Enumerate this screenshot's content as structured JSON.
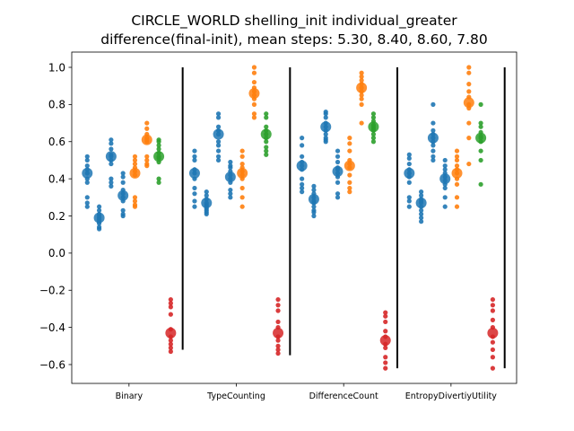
{
  "chart_data": {
    "type": "scatter",
    "title_line1": "CIRCLE_WORLD shelling_init individual_greater",
    "title_line2": "difference(final-init), mean steps: 5.30, 8.40, 8.60, 7.80",
    "xlabel": "",
    "ylabel": "",
    "ylim": [
      -0.7,
      1.07
    ],
    "yticks": [
      "−0.6",
      "−0.4",
      "−0.2",
      "0.0",
      "0.2",
      "0.4",
      "0.6",
      "0.8",
      "1.0"
    ],
    "ytick_values": [
      -0.6,
      -0.4,
      -0.2,
      0.0,
      0.2,
      0.4,
      0.6,
      0.8,
      1.0
    ],
    "grid": false,
    "colors": {
      "blue": "#1f77b4",
      "orange": "#ff7f0e",
      "green": "#2ca02c",
      "red": "#d62728",
      "separator": "#000000"
    },
    "groups": [
      {
        "label": "Binary",
        "strips": [
          {
            "x": 0.5,
            "color": "blue",
            "mean": 0.43,
            "points": [
              0.52,
              0.5,
              0.47,
              0.45,
              0.43,
              0.4,
              0.38,
              0.3,
              0.27,
              0.25
            ]
          },
          {
            "x": 1.5,
            "color": "blue",
            "mean": 0.19,
            "points": [
              0.25,
              0.23,
              0.21,
              0.2,
              0.19,
              0.18,
              0.17,
              0.16,
              0.14,
              0.13
            ]
          },
          {
            "x": 2.5,
            "color": "blue",
            "mean": 0.52,
            "points": [
              0.61,
              0.59,
              0.56,
              0.53,
              0.52,
              0.5,
              0.48,
              0.4,
              0.38,
              0.36
            ]
          },
          {
            "x": 3.5,
            "color": "blue",
            "mean": 0.31,
            "points": [
              0.43,
              0.41,
              0.38,
              0.34,
              0.32,
              0.3,
              0.28,
              0.23,
              0.21,
              0.2
            ]
          },
          {
            "x": 4.5,
            "color": "orange",
            "mean": 0.43,
            "points": [
              0.52,
              0.5,
              0.48,
              0.46,
              0.44,
              0.42,
              0.3,
              0.28,
              0.26,
              0.25
            ]
          },
          {
            "x": 5.5,
            "color": "orange",
            "mean": 0.61,
            "points": [
              0.7,
              0.67,
              0.64,
              0.62,
              0.61,
              0.6,
              0.52,
              0.5,
              0.48,
              0.47
            ]
          },
          {
            "x": 6.5,
            "color": "green",
            "mean": 0.52,
            "points": [
              0.61,
              0.6,
              0.58,
              0.56,
              0.54,
              0.52,
              0.51,
              0.49,
              0.4,
              0.38
            ]
          },
          {
            "x": 7.5,
            "color": "red",
            "mean": -0.43,
            "points": [
              -0.25,
              -0.27,
              -0.29,
              -0.33,
              -0.41,
              -0.45,
              -0.47,
              -0.49,
              -0.51,
              -0.53
            ]
          }
        ]
      },
      {
        "label": "TypeCounting",
        "strips": [
          {
            "x": 9.5,
            "color": "blue",
            "mean": 0.43,
            "points": [
              0.55,
              0.52,
              0.5,
              0.45,
              0.43,
              0.4,
              0.35,
              0.32,
              0.28,
              0.25
            ]
          },
          {
            "x": 10.5,
            "color": "blue",
            "mean": 0.27,
            "points": [
              0.33,
              0.31,
              0.29,
              0.27,
              0.26,
              0.25,
              0.24,
              0.23,
              0.22,
              0.21
            ]
          },
          {
            "x": 11.5,
            "color": "blue",
            "mean": 0.64,
            "points": [
              0.75,
              0.73,
              0.68,
              0.66,
              0.64,
              0.6,
              0.58,
              0.55,
              0.52,
              0.5
            ]
          },
          {
            "x": 12.5,
            "color": "blue",
            "mean": 0.41,
            "points": [
              0.49,
              0.47,
              0.46,
              0.44,
              0.42,
              0.4,
              0.38,
              0.34,
              0.32,
              0.3
            ]
          },
          {
            "x": 13.5,
            "color": "orange",
            "mean": 0.43,
            "points": [
              0.55,
              0.52,
              0.48,
              0.46,
              0.44,
              0.42,
              0.4,
              0.35,
              0.3,
              0.25
            ]
          },
          {
            "x": 14.5,
            "color": "orange",
            "mean": 0.86,
            "points": [
              1.0,
              0.97,
              0.92,
              0.89,
              0.87,
              0.85,
              0.83,
              0.8,
              0.75,
              0.73
            ]
          },
          {
            "x": 15.5,
            "color": "green",
            "mean": 0.64,
            "points": [
              0.75,
              0.73,
              0.68,
              0.66,
              0.64,
              0.62,
              0.6,
              0.57,
              0.55,
              0.53
            ]
          },
          {
            "x": 16.5,
            "color": "red",
            "mean": -0.43,
            "points": [
              -0.25,
              -0.28,
              -0.31,
              -0.37,
              -0.4,
              -0.45,
              -0.47,
              -0.5,
              -0.52,
              -0.54
            ]
          }
        ]
      },
      {
        "label": "DifferenceCount",
        "strips": [
          {
            "x": 18.5,
            "color": "blue",
            "mean": 0.47,
            "points": [
              0.62,
              0.58,
              0.52,
              0.49,
              0.47,
              0.45,
              0.4,
              0.37,
              0.35,
              0.33
            ]
          },
          {
            "x": 19.5,
            "color": "blue",
            "mean": 0.29,
            "points": [
              0.36,
              0.34,
              0.32,
              0.3,
              0.28,
              0.27,
              0.25,
              0.23,
              0.22,
              0.2
            ]
          },
          {
            "x": 20.5,
            "color": "blue",
            "mean": 0.68,
            "points": [
              0.76,
              0.75,
              0.73,
              0.7,
              0.68,
              0.66,
              0.64,
              0.62,
              0.61,
              0.6
            ]
          },
          {
            "x": 21.5,
            "color": "blue",
            "mean": 0.44,
            "points": [
              0.55,
              0.52,
              0.49,
              0.46,
              0.45,
              0.43,
              0.41,
              0.38,
              0.32,
              0.3
            ]
          },
          {
            "x": 22.5,
            "color": "orange",
            "mean": 0.47,
            "points": [
              0.62,
              0.59,
              0.55,
              0.5,
              0.48,
              0.46,
              0.42,
              0.38,
              0.35,
              0.33
            ]
          },
          {
            "x": 23.5,
            "color": "orange",
            "mean": 0.89,
            "points": [
              0.97,
              0.95,
              0.93,
              0.91,
              0.89,
              0.87,
              0.85,
              0.83,
              0.8,
              0.7
            ]
          },
          {
            "x": 24.5,
            "color": "green",
            "mean": 0.68,
            "points": [
              0.75,
              0.73,
              0.71,
              0.69,
              0.68,
              0.67,
              0.66,
              0.64,
              0.62,
              0.6
            ]
          },
          {
            "x": 25.5,
            "color": "red",
            "mean": -0.47,
            "points": [
              -0.32,
              -0.34,
              -0.37,
              -0.42,
              -0.45,
              -0.49,
              -0.51,
              -0.56,
              -0.59,
              -0.62
            ]
          }
        ]
      },
      {
        "label": "EntropyDivertiyUtility",
        "strips": [
          {
            "x": 27.5,
            "color": "blue",
            "mean": 0.43,
            "points": [
              0.53,
              0.51,
              0.48,
              0.45,
              0.43,
              0.41,
              0.38,
              0.3,
              0.28,
              0.25
            ]
          },
          {
            "x": 28.5,
            "color": "blue",
            "mean": 0.27,
            "points": [
              0.33,
              0.31,
              0.29,
              0.28,
              0.27,
              0.25,
              0.23,
              0.21,
              0.19,
              0.17
            ]
          },
          {
            "x": 29.5,
            "color": "blue",
            "mean": 0.62,
            "points": [
              0.8,
              0.7,
              0.66,
              0.64,
              0.62,
              0.6,
              0.58,
              0.55,
              0.52,
              0.5
            ]
          },
          {
            "x": 30.5,
            "color": "blue",
            "mean": 0.4,
            "points": [
              0.5,
              0.47,
              0.45,
              0.43,
              0.41,
              0.39,
              0.37,
              0.35,
              0.3,
              0.25
            ]
          },
          {
            "x": 31.5,
            "color": "orange",
            "mean": 0.43,
            "points": [
              0.55,
              0.52,
              0.5,
              0.47,
              0.45,
              0.43,
              0.4,
              0.37,
              0.3,
              0.25
            ]
          },
          {
            "x": 32.5,
            "color": "orange",
            "mean": 0.81,
            "points": [
              1.0,
              0.97,
              0.91,
              0.87,
              0.84,
              0.8,
              0.78,
              0.7,
              0.62,
              0.48
            ]
          },
          {
            "x": 33.5,
            "color": "green",
            "mean": 0.62,
            "points": [
              0.8,
              0.7,
              0.68,
              0.65,
              0.63,
              0.62,
              0.6,
              0.55,
              0.5,
              0.37
            ]
          },
          {
            "x": 34.5,
            "color": "red",
            "mean": -0.43,
            "points": [
              -0.25,
              -0.28,
              -0.31,
              -0.36,
              -0.4,
              -0.45,
              -0.48,
              -0.52,
              -0.56,
              -0.62
            ]
          }
        ]
      }
    ],
    "separators": [
      {
        "x": 8.5,
        "y0": -0.52,
        "y1": 1.0
      },
      {
        "x": 17.5,
        "y0": -0.55,
        "y1": 1.0
      },
      {
        "x": 26.5,
        "y0": -0.62,
        "y1": 1.0
      },
      {
        "x": 35.5,
        "y0": -0.62,
        "y1": 1.0
      }
    ],
    "xlim": [
      -0.8,
      36.5
    ]
  }
}
